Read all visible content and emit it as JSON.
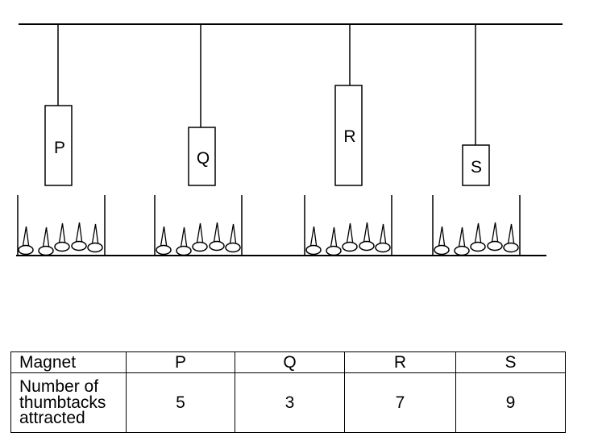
{
  "magnets": [
    {
      "label": "P"
    },
    {
      "label": "Q"
    },
    {
      "label": "R"
    },
    {
      "label": "S"
    }
  ],
  "table": {
    "header_label": "Magnet",
    "row_label": "Number of thumbtacks attracted",
    "columns": [
      "P",
      "Q",
      "R",
      "S"
    ],
    "values": [
      "5",
      "3",
      "7",
      "9"
    ]
  },
  "thumbtacks_per_container": 5
}
